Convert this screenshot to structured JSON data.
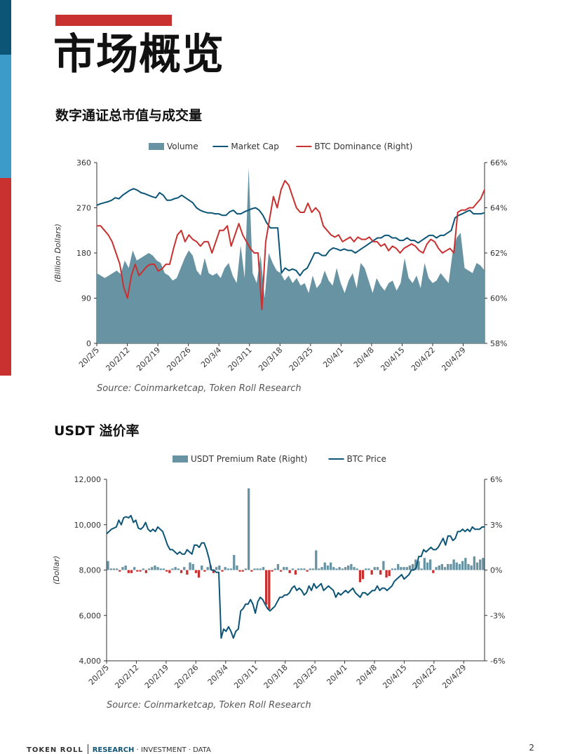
{
  "page": {
    "title": "市场概览",
    "page_number": "2"
  },
  "footer": {
    "brand": "TOKEN ROLL",
    "research": "RESEARCH",
    "rest": "· INVESTMENT · DATA"
  },
  "colors": {
    "navy": "#0d5577",
    "blue": "#3d9bc9",
    "red": "#c8312f",
    "volume_fill": "#6793a3"
  },
  "chart1": {
    "section_title": "数字通证总市值与成交量",
    "source": "Source: Coinmarketcap, Token Roll Research",
    "chart_data": {
      "type": "line",
      "x_tick_labels": [
        "20/2/5",
        "20/2/12",
        "20/2/19",
        "20/2/26",
        "20/3/4",
        "20/3/11",
        "20/3/18",
        "20/3/25",
        "20/4/1",
        "20/4/8",
        "20/4/15",
        "20/4/22",
        "20/4/29"
      ],
      "ylabel": "(Billion Dollars)",
      "ylim": [
        0,
        360
      ],
      "y_ticks": [
        "0",
        "90",
        "180",
        "270",
        "360"
      ],
      "y2lim": [
        58,
        66
      ],
      "y2_ticks": [
        "58%",
        "60%",
        "62%",
        "64%",
        "66%"
      ],
      "legend": [
        "Volume",
        "Market Cap",
        "BTC Dominance (Right)"
      ],
      "legend_position": "top",
      "series": [
        {
          "name": "Volume",
          "type": "area",
          "axis": "left",
          "color": "#6793a3",
          "values": [
            140,
            135,
            130,
            135,
            140,
            145,
            138,
            165,
            150,
            185,
            165,
            170,
            175,
            180,
            175,
            165,
            160,
            140,
            135,
            125,
            130,
            150,
            170,
            185,
            175,
            145,
            135,
            170,
            140,
            135,
            140,
            130,
            150,
            160,
            135,
            120,
            195,
            130,
            350,
            140,
            120,
            175,
            90,
            180,
            160,
            145,
            140,
            125,
            135,
            120,
            130,
            115,
            120,
            100,
            135,
            110,
            120,
            145,
            125,
            115,
            150,
            120,
            100,
            125,
            140,
            110,
            160,
            150,
            125,
            100,
            130,
            115,
            105,
            120,
            125,
            105,
            120,
            170,
            130,
            120,
            135,
            110,
            160,
            130,
            120,
            125,
            140,
            130,
            120,
            180,
            210,
            220,
            150,
            145,
            140,
            160,
            155,
            145
          ]
        },
        {
          "name": "Market Cap",
          "type": "line",
          "axis": "left",
          "color": "#0d5577",
          "values": [
            275,
            278,
            280,
            282,
            285,
            290,
            288,
            295,
            300,
            305,
            308,
            305,
            300,
            298,
            295,
            292,
            290,
            300,
            295,
            285,
            285,
            288,
            290,
            295,
            290,
            285,
            280,
            270,
            265,
            262,
            260,
            260,
            258,
            258,
            255,
            255,
            262,
            265,
            258,
            258,
            262,
            265,
            268,
            270,
            265,
            255,
            240,
            230,
            230,
            230,
            140,
            150,
            145,
            148,
            145,
            135,
            145,
            150,
            165,
            180,
            180,
            175,
            175,
            185,
            190,
            188,
            185,
            188,
            185,
            185,
            180,
            185,
            190,
            195,
            200,
            205,
            210,
            210,
            215,
            215,
            210,
            210,
            205,
            205,
            210,
            205,
            205,
            200,
            205,
            210,
            215,
            215,
            210,
            215,
            215,
            220,
            225,
            250,
            255,
            258,
            262,
            265,
            258,
            258,
            258,
            260
          ]
        },
        {
          "name": "BTC Dominance (Right)",
          "type": "line",
          "axis": "right",
          "color": "#c8312f",
          "values": [
            63.2,
            63.2,
            63.0,
            62.8,
            62.5,
            62.0,
            61.5,
            60.5,
            60.0,
            61.0,
            61.5,
            61.0,
            61.2,
            61.4,
            61.5,
            61.5,
            61.2,
            61.3,
            61.5,
            61.5,
            62.2,
            62.8,
            63.0,
            62.5,
            62.8,
            62.6,
            62.5,
            62.3,
            62.5,
            62.5,
            62.0,
            62.5,
            63.0,
            63.0,
            63.2,
            62.3,
            62.8,
            63.3,
            62.8,
            62.5,
            62.2,
            62.0,
            62.0,
            59.5,
            62.5,
            63.5,
            64.5,
            64.0,
            64.8,
            65.2,
            65.0,
            64.5,
            64.0,
            63.8,
            63.8,
            64.2,
            63.8,
            64.0,
            63.8,
            63.2,
            63.0,
            62.8,
            62.7,
            62.8,
            62.5,
            62.6,
            62.7,
            62.5,
            62.7,
            62.6,
            62.6,
            62.7,
            62.5,
            62.5,
            62.3,
            62.4,
            62.1,
            62.3,
            62.2,
            62.0,
            62.2,
            62.3,
            62.4,
            62.3,
            62.1,
            62.0,
            62.4,
            62.6,
            62.5,
            62.2,
            62.0,
            62.1,
            62.2,
            62.0,
            63.8,
            63.9,
            63.9,
            64.0,
            64.0,
            64.2,
            64.4,
            64.8
          ]
        }
      ]
    }
  },
  "chart2": {
    "section_title": "USDT 溢价率",
    "source": "Source: Coinmarketcap, Token Roll Research",
    "chart_data": {
      "type": "bar",
      "x_tick_labels": [
        "20/2/5",
        "20/2/12",
        "20/2/19",
        "20/2/26",
        "20/3/4",
        "20/3/11",
        "20/3/18",
        "20/3/25",
        "20/4/1",
        "20/4/8",
        "20/4/15",
        "20/4/22",
        "20/4/29"
      ],
      "ylabel": "(Dollar)",
      "ylim": [
        4000,
        12000
      ],
      "y_ticks": [
        "4,000",
        "6,000",
        "8,000",
        "10,000",
        "12,000"
      ],
      "y2lim": [
        -6,
        6
      ],
      "y2_ticks": [
        "-6%",
        "-3%",
        "0%",
        "3%",
        "6%"
      ],
      "legend": [
        "USDT Premium Rate (Right)",
        "BTC Price"
      ],
      "legend_position": "top",
      "series": [
        {
          "name": "USDT Premium Rate (Right)",
          "type": "bar",
          "axis": "right",
          "color_pos": "#6793a3",
          "color_neg": "#c8312f",
          "values": [
            0.6,
            0.1,
            0.1,
            0.1,
            -0.1,
            0.2,
            0.3,
            -0.2,
            -0.2,
            0.2,
            -0.1,
            -0.1,
            0.1,
            -0.2,
            0.1,
            0.2,
            0.3,
            0.2,
            0.1,
            0.1,
            -0.1,
            -0.2,
            0.1,
            0.2,
            0.1,
            -0.2,
            0.2,
            -0.3,
            0.5,
            0.4,
            -0.2,
            -0.5,
            0.3,
            -0.1,
            0.2,
            0.3,
            -0.2,
            0.2,
            0.3,
            -0.1,
            0.2,
            0.1,
            0.1,
            1.0,
            0.3,
            -0.1,
            -0.1,
            0.1,
            5.4,
            -0.1,
            0.1,
            0.1,
            0.1,
            0.2,
            -2.3,
            -2.6,
            -0.1,
            0.1,
            0.4,
            -0.1,
            0.2,
            0.2,
            -0.2,
            0.1,
            -0.3,
            0.1,
            0.1,
            0.1,
            -0.1,
            0.1,
            0.1,
            1.3,
            0.1,
            0.2,
            0.5,
            0.3,
            0.5,
            0.2,
            0.1,
            0.2,
            0.1,
            0.2,
            0.3,
            0.4,
            0.2,
            0.1,
            -0.8,
            -0.6,
            0.1,
            0.1,
            -0.3,
            0.2,
            0.2,
            -0.3,
            0.6,
            -0.5,
            -0.4,
            0.1,
            0.1,
            0.4,
            0.2,
            0.2,
            0.2,
            0.3,
            0.4,
            0.7,
            0.6,
            0.1,
            0.8,
            0.5,
            0.7,
            -0.2,
            0.2,
            0.3,
            0.4,
            0.2,
            0.4,
            0.4,
            0.7,
            0.5,
            0.4,
            0.6,
            0.8,
            0.4,
            0.3,
            0.9,
            0.5,
            0.7,
            0.8
          ]
        },
        {
          "name": "BTC Price",
          "type": "line",
          "axis": "left",
          "color": "#0d5577",
          "values": [
            9600,
            9700,
            9800,
            9850,
            9900,
            10200,
            10000,
            10300,
            10350,
            10300,
            10400,
            10100,
            10200,
            9850,
            9800,
            9900,
            10100,
            9800,
            9700,
            9800,
            9700,
            9900,
            9800,
            9700,
            9400,
            9100,
            8900,
            8900,
            8800,
            8700,
            8800,
            8700,
            8700,
            8900,
            8800,
            8700,
            9100,
            9100,
            9000,
            9200,
            9200,
            8900,
            8500,
            8000,
            8000,
            7900,
            7900,
            5000,
            5400,
            5300,
            5500,
            5300,
            5000,
            5300,
            5400,
            6200,
            6300,
            6500,
            6500,
            6700,
            6500,
            6100,
            6600,
            6800,
            6700,
            6500,
            6300,
            6200,
            6300,
            6400,
            6600,
            6800,
            6800,
            6900,
            6900,
            7000,
            7200,
            7300,
            7100,
            7200,
            7100,
            6900,
            7000,
            7300,
            7100,
            7400,
            7200,
            7300,
            7400,
            7100,
            7200,
            7300,
            7200,
            7100,
            6800,
            7000,
            6900,
            7000,
            7100,
            7000,
            7100,
            7200,
            7000,
            6900,
            6800,
            7000,
            7000,
            6900,
            7000,
            7100,
            7100,
            7300,
            7100,
            7200,
            7200,
            7100,
            7200,
            7300,
            7500,
            7600,
            7700,
            7800,
            7600,
            7700,
            7800,
            8000,
            8000,
            8100,
            8600,
            8600,
            8900,
            8800,
            8900,
            9000,
            8900,
            8900,
            9000,
            9200,
            9400,
            9100,
            9500,
            9500,
            9300,
            9400,
            9700,
            9700,
            9800,
            9700,
            9800,
            9700,
            9900,
            9800,
            9800,
            9800,
            9900,
            9900
          ]
        }
      ]
    }
  }
}
